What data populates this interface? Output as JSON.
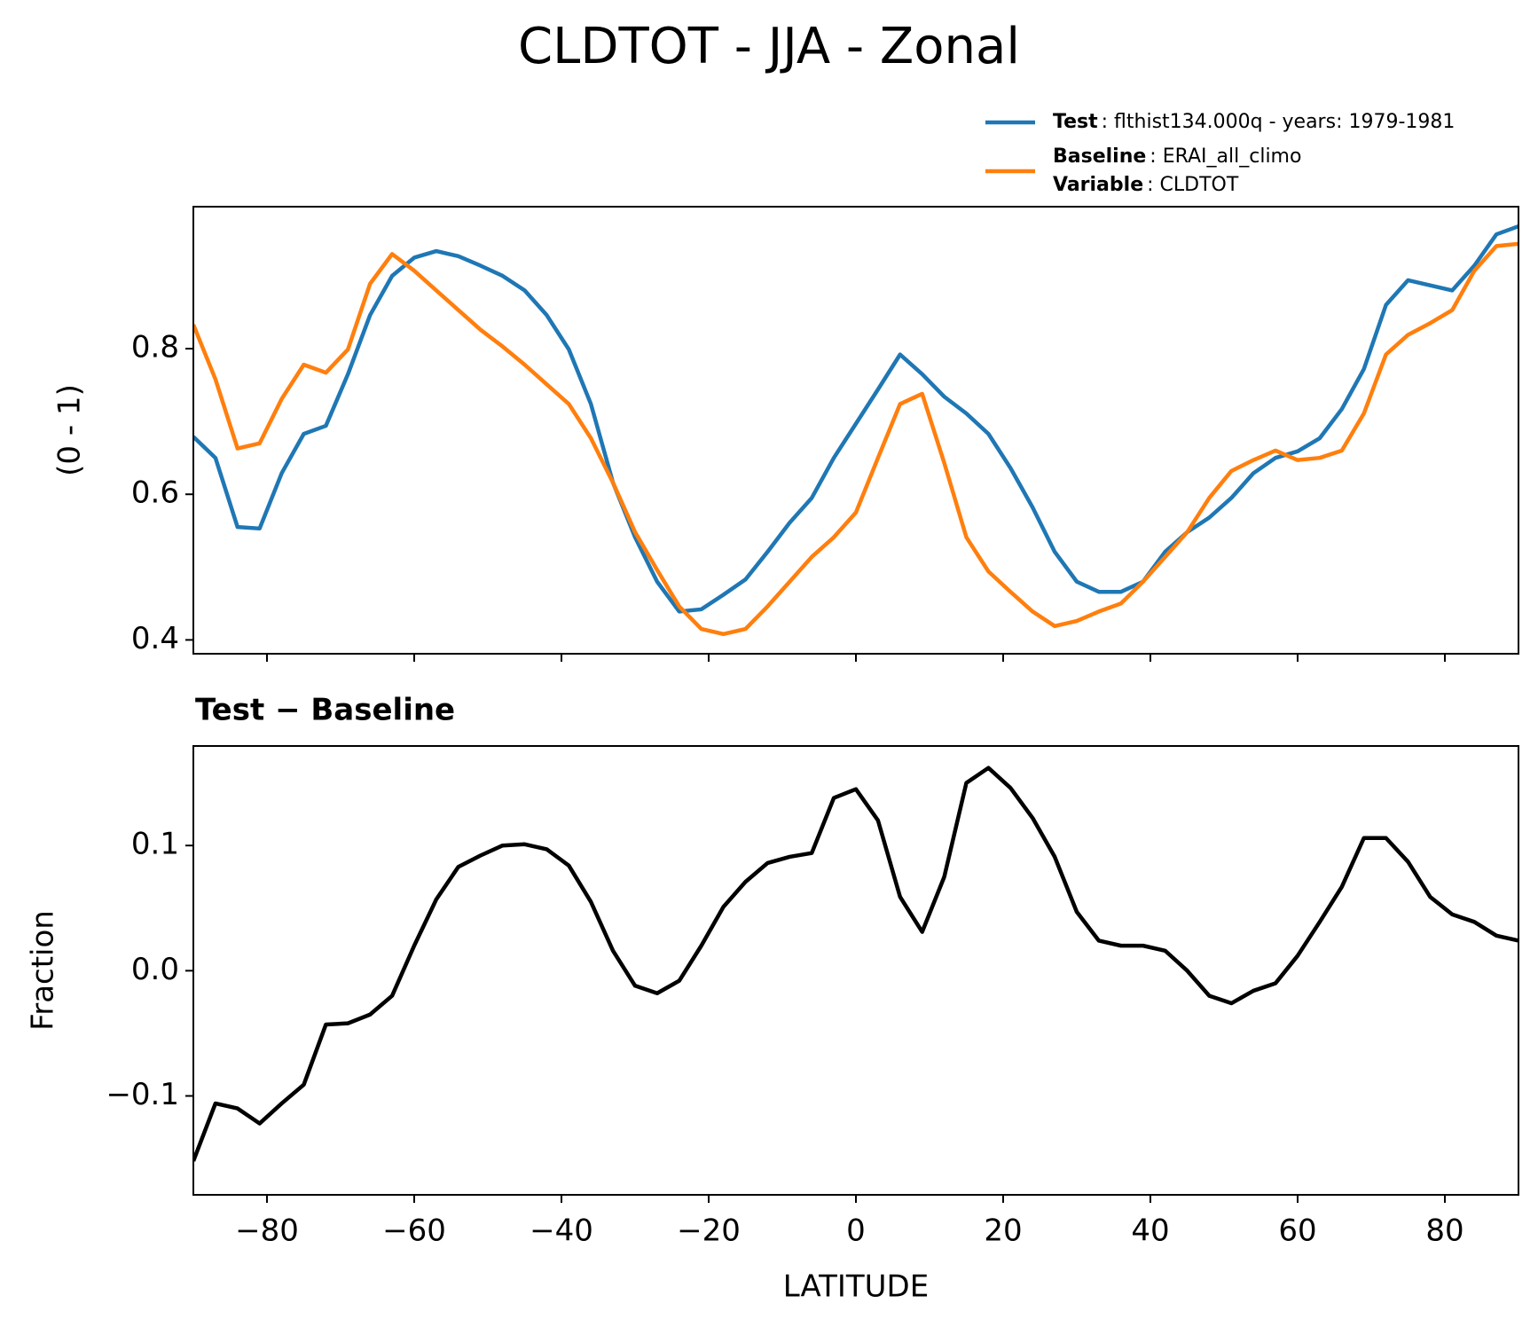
{
  "title": "CLDTOT - JJA - Zonal",
  "chart_data": [
    {
      "type": "line",
      "ylabel": "(0 - 1)",
      "x": [
        -90,
        -87,
        -84,
        -81,
        -78,
        -75,
        -72,
        -69,
        -66,
        -63,
        -60,
        -57,
        -54,
        -51,
        -48,
        -45,
        -42,
        -39,
        -36,
        -33,
        -30,
        -27,
        -24,
        -21,
        -18,
        -15,
        -12,
        -9,
        -6,
        -3,
        0,
        3,
        6,
        9,
        12,
        15,
        18,
        21,
        24,
        27,
        30,
        33,
        36,
        39,
        42,
        45,
        48,
        51,
        54,
        57,
        60,
        63,
        66,
        69,
        72,
        75,
        78,
        81,
        84,
        87,
        90
      ],
      "series": [
        {
          "name": "Test",
          "legend_text": ": flthist134.000q - years: 1979-1981",
          "color": "#1f77b4",
          "values": [
            0.679,
            0.65,
            0.555,
            0.553,
            0.629,
            0.683,
            0.694,
            0.765,
            0.846,
            0.9,
            0.925,
            0.934,
            0.927,
            0.914,
            0.9,
            0.88,
            0.846,
            0.799,
            0.724,
            0.616,
            0.541,
            0.48,
            0.439,
            0.442,
            0.462,
            0.483,
            0.521,
            0.561,
            0.595,
            0.65,
            0.697,
            0.744,
            0.792,
            0.765,
            0.734,
            0.711,
            0.683,
            0.636,
            0.582,
            0.521,
            0.48,
            0.466,
            0.466,
            0.48,
            0.521,
            0.548,
            0.568,
            0.595,
            0.629,
            0.65,
            0.659,
            0.677,
            0.717,
            0.772,
            0.86,
            0.894,
            0.887,
            0.88,
            0.914,
            0.957,
            0.968
          ]
        },
        {
          "name": "Baseline",
          "legend_text": ": ERAI_all_climo",
          "legend_extra": {
            "key": "Variable",
            "text": ": CLDTOT"
          },
          "color": "#ff7f0e",
          "values": [
            0.833,
            0.758,
            0.663,
            0.67,
            0.731,
            0.778,
            0.767,
            0.799,
            0.889,
            0.93,
            0.907,
            0.88,
            0.853,
            0.826,
            0.803,
            0.778,
            0.751,
            0.724,
            0.677,
            0.616,
            0.548,
            0.496,
            0.446,
            0.415,
            0.408,
            0.415,
            0.446,
            0.48,
            0.514,
            0.541,
            0.575,
            0.65,
            0.724,
            0.738,
            0.643,
            0.541,
            0.494,
            0.466,
            0.439,
            0.419,
            0.426,
            0.439,
            0.45,
            0.48,
            0.514,
            0.548,
            0.595,
            0.632,
            0.647,
            0.66,
            0.647,
            0.65,
            0.66,
            0.711,
            0.792,
            0.819,
            0.835,
            0.853,
            0.907,
            0.941,
            0.944
          ]
        }
      ],
      "xlim": [
        -90,
        90
      ],
      "xticks": [
        -80,
        -60,
        -40,
        -20,
        0,
        20,
        40,
        60,
        80
      ],
      "ylim": [
        0.381,
        0.995
      ],
      "yticks": [
        0.4,
        0.6,
        0.8
      ]
    },
    {
      "type": "line",
      "title": "Test − Baseline",
      "ylabel": "Fraction",
      "xlabel": "LATITUDE",
      "x": [
        -90,
        -87,
        -84,
        -81,
        -78,
        -75,
        -72,
        -69,
        -66,
        -63,
        -60,
        -57,
        -54,
        -51,
        -48,
        -45,
        -42,
        -39,
        -36,
        -33,
        -30,
        -27,
        -24,
        -21,
        -18,
        -15,
        -12,
        -9,
        -6,
        -3,
        0,
        3,
        6,
        9,
        12,
        15,
        18,
        21,
        24,
        27,
        30,
        33,
        36,
        39,
        42,
        45,
        48,
        51,
        54,
        57,
        60,
        63,
        66,
        69,
        72,
        75,
        78,
        81,
        84,
        87,
        90
      ],
      "series": [
        {
          "color": "#000000",
          "values": [
            -0.152,
            -0.106,
            -0.11,
            -0.122,
            -0.106,
            -0.091,
            -0.043,
            -0.042,
            -0.035,
            -0.02,
            0.02,
            0.057,
            0.083,
            0.092,
            0.1,
            0.101,
            0.097,
            0.084,
            0.055,
            0.016,
            -0.012,
            -0.018,
            -0.008,
            0.02,
            0.051,
            0.071,
            0.086,
            0.091,
            0.094,
            0.138,
            0.145,
            0.12,
            0.059,
            0.031,
            0.075,
            0.15,
            0.162,
            0.146,
            0.122,
            0.091,
            0.047,
            0.024,
            0.02,
            0.02,
            0.016,
            0.0,
            -0.02,
            -0.026,
            -0.016,
            -0.01,
            0.012,
            0.039,
            0.067,
            0.106,
            0.106,
            0.087,
            0.059,
            0.045,
            0.039,
            0.028,
            0.024
          ]
        }
      ],
      "xlim": [
        -90,
        90
      ],
      "xticks": [
        {
          "value": -80,
          "label": "−80"
        },
        {
          "value": -60,
          "label": "−60"
        },
        {
          "value": -40,
          "label": "−40"
        },
        {
          "value": -20,
          "label": "−20"
        },
        0,
        20,
        40,
        60,
        80
      ],
      "ylim": [
        -0.179,
        0.1795
      ],
      "yticks": [
        {
          "value": -0.1,
          "label": "−0.1"
        },
        {
          "value": 0,
          "label": "0.0"
        },
        0.1
      ]
    }
  ]
}
